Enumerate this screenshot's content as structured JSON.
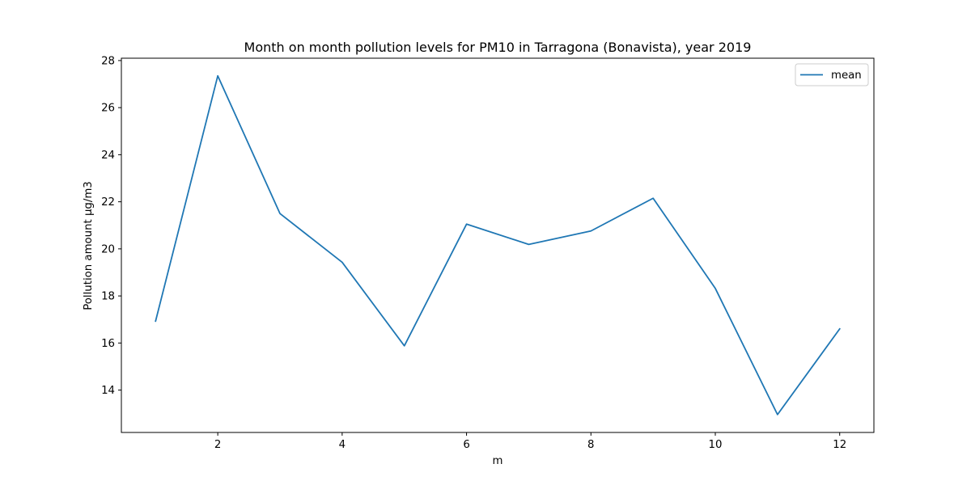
{
  "chart_data": {
    "type": "line",
    "title": "Month on month pollution levels for PM10 in Tarragona (Bonavista), year 2019",
    "xlabel": "m",
    "ylabel": "Pollution amount µg/m3",
    "x": [
      1,
      2,
      3,
      4,
      5,
      6,
      7,
      8,
      9,
      10,
      11,
      12
    ],
    "series": [
      {
        "name": "mean",
        "color": "#1f77b4",
        "values": [
          16.93,
          27.35,
          21.5,
          19.43,
          15.88,
          21.05,
          20.19,
          20.76,
          22.15,
          18.32,
          12.96,
          16.6
        ]
      }
    ],
    "xlim": [
      0.45,
      12.55
    ],
    "ylim": [
      12.2,
      28.1
    ],
    "xticks": [
      2,
      4,
      6,
      8,
      10,
      12
    ],
    "yticks": [
      14,
      16,
      18,
      20,
      22,
      24,
      26,
      28
    ],
    "grid": false,
    "legend_position": "top-right"
  }
}
